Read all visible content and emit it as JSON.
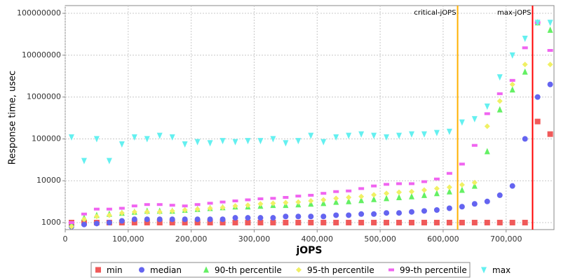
{
  "chart_data": {
    "type": "scatter",
    "x_label": "jOPS",
    "y_label": "Response time, usec",
    "log_y": true,
    "grid": true,
    "legend": "bottom",
    "xlim": [
      0,
      776000
    ],
    "ylim": [
      680,
      153000000
    ],
    "xticks": [
      {
        "value": 0,
        "label": "0"
      },
      {
        "value": 100000,
        "label": "100,000"
      },
      {
        "value": 200000,
        "label": "200,000"
      },
      {
        "value": 300000,
        "label": "300,000"
      },
      {
        "value": 400000,
        "label": "400,000"
      },
      {
        "value": 500000,
        "label": "500,000"
      },
      {
        "value": 600000,
        "label": "600,000"
      },
      {
        "value": 700000,
        "label": "700,000"
      }
    ],
    "yticks": [
      1000,
      10000,
      100000,
      1000000,
      10000000,
      100000000
    ],
    "vlines": [
      {
        "label": "critical-jOPS",
        "value": 623000,
        "color": "#ffb000"
      },
      {
        "label": "max-jOPS",
        "value": 742000,
        "color": "#ff0000"
      }
    ],
    "x": [
      10000,
      30000,
      50000,
      70000,
      90000,
      110000,
      130000,
      150000,
      170000,
      190000,
      210000,
      230000,
      250000,
      270000,
      290000,
      310000,
      330000,
      350000,
      370000,
      390000,
      410000,
      430000,
      450000,
      470000,
      490000,
      510000,
      530000,
      550000,
      570000,
      590000,
      610000,
      630000,
      650000,
      670000,
      690000,
      710000,
      730000,
      750000,
      770000
    ],
    "series": [
      {
        "name": "min",
        "color": "#f05a5a",
        "marker": "square",
        "values": [
          1000,
          1000,
          1000,
          1000,
          1000,
          1000,
          1000,
          1000,
          1000,
          1000,
          1000,
          1000,
          1000,
          1000,
          1000,
          1000,
          1000,
          1000,
          1000,
          1000,
          1000,
          1000,
          1000,
          1000,
          1000,
          1000,
          1000,
          1000,
          1000,
          1000,
          1000,
          1000,
          1000,
          1000,
          1000,
          1000,
          1000,
          260000,
          130000
        ]
      },
      {
        "name": "median",
        "color": "#6464f0",
        "marker": "circle",
        "values": [
          800,
          900,
          950,
          1000,
          1100,
          1200,
          1200,
          1200,
          1200,
          1200,
          1200,
          1200,
          1200,
          1300,
          1300,
          1300,
          1300,
          1400,
          1400,
          1400,
          1400,
          1500,
          1500,
          1600,
          1600,
          1700,
          1700,
          1800,
          1900,
          2000,
          2200,
          2400,
          2800,
          3200,
          4500,
          7500,
          100000,
          1000000,
          2000000
        ]
      },
      {
        "name": "90-th percentile",
        "color": "#64f064",
        "marker": "triangle-up",
        "values": [
          900,
          1300,
          1500,
          1600,
          1700,
          1800,
          1900,
          1900,
          1900,
          2000,
          2100,
          2200,
          2300,
          2400,
          2400,
          2500,
          2600,
          2600,
          2700,
          2800,
          2900,
          3100,
          3200,
          3400,
          3600,
          3800,
          4000,
          4200,
          4500,
          5000,
          5500,
          6000,
          7500,
          50000,
          500000,
          1500000,
          4000000,
          60000000,
          40000000
        ]
      },
      {
        "name": "95-th percentile",
        "color": "#f0f064",
        "marker": "diamond",
        "values": [
          800,
          1200,
          1400,
          1500,
          1700,
          1800,
          1800,
          1800,
          1900,
          2000,
          2100,
          2200,
          2300,
          2500,
          2600,
          2800,
          2900,
          3000,
          3100,
          3300,
          3500,
          3800,
          4000,
          4200,
          4600,
          5000,
          5300,
          5500,
          6000,
          6500,
          7000,
          8000,
          9000,
          200000,
          800000,
          2000000,
          6000000,
          60000000,
          6000000
        ]
      },
      {
        "name": "99-th percentile",
        "color": "#f064f0",
        "marker": "rect",
        "values": [
          1000,
          1600,
          2100,
          2100,
          2200,
          2500,
          2700,
          2700,
          2600,
          2500,
          2700,
          2900,
          3100,
          3300,
          3500,
          3700,
          3800,
          4000,
          4300,
          4500,
          5000,
          5500,
          5700,
          6500,
          7500,
          8200,
          8500,
          8500,
          9500,
          11000,
          15000,
          25000,
          70000,
          400000,
          1200000,
          2500000,
          15000000,
          60000000,
          13000000
        ]
      },
      {
        "name": "max",
        "color": "#64f0f0",
        "marker": "triangle-down",
        "values": [
          110000,
          30000,
          100000,
          30000,
          75000,
          110000,
          100000,
          120000,
          110000,
          75000,
          85000,
          80000,
          90000,
          85000,
          90000,
          90000,
          100000,
          80000,
          90000,
          120000,
          85000,
          110000,
          120000,
          130000,
          120000,
          110000,
          120000,
          130000,
          130000,
          140000,
          150000,
          250000,
          300000,
          600000,
          3000000,
          10000000,
          25000000,
          60000000,
          60000000
        ]
      }
    ]
  }
}
